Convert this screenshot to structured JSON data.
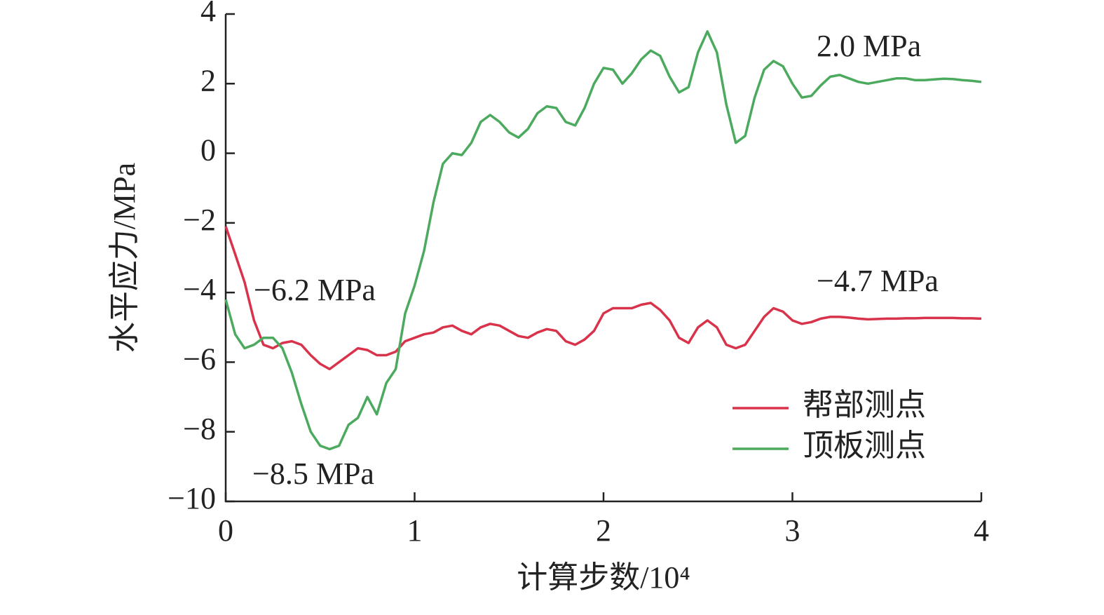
{
  "chart_data": {
    "type": "line",
    "xlabel": "计算步数/10⁴",
    "ylabel": "水平应力/MPa",
    "x": [
      0,
      0.05,
      0.1,
      0.15,
      0.2,
      0.25,
      0.3,
      0.35,
      0.4,
      0.45,
      0.5,
      0.55,
      0.6,
      0.65,
      0.7,
      0.75,
      0.8,
      0.85,
      0.9,
      0.95,
      1.0,
      1.05,
      1.1,
      1.15,
      1.2,
      1.25,
      1.3,
      1.35,
      1.4,
      1.45,
      1.5,
      1.55,
      1.6,
      1.65,
      1.7,
      1.75,
      1.8,
      1.85,
      1.9,
      1.95,
      2.0,
      2.05,
      2.1,
      2.15,
      2.2,
      2.25,
      2.3,
      2.35,
      2.4,
      2.45,
      2.5,
      2.55,
      2.6,
      2.65,
      2.7,
      2.75,
      2.8,
      2.85,
      2.9,
      2.95,
      3.0,
      3.05,
      3.1,
      3.15,
      3.2,
      3.25,
      3.3,
      3.35,
      3.4,
      3.45,
      3.5,
      3.55,
      3.6,
      3.65,
      3.7,
      3.75,
      3.8,
      3.85,
      3.9,
      3.95,
      4.0
    ],
    "series": [
      {
        "name": "帮部测点",
        "color": "#d8334a",
        "values": [
          -2.1,
          -2.9,
          -3.7,
          -4.8,
          -5.5,
          -5.6,
          -5.45,
          -5.4,
          -5.5,
          -5.8,
          -6.05,
          -6.2,
          -6.0,
          -5.8,
          -5.6,
          -5.65,
          -5.8,
          -5.8,
          -5.7,
          -5.4,
          -5.3,
          -5.2,
          -5.15,
          -5.0,
          -4.95,
          -5.1,
          -5.2,
          -5.0,
          -4.9,
          -4.95,
          -5.1,
          -5.25,
          -5.3,
          -5.15,
          -5.05,
          -5.1,
          -5.4,
          -5.5,
          -5.35,
          -5.1,
          -4.6,
          -4.45,
          -4.45,
          -4.45,
          -4.35,
          -4.3,
          -4.5,
          -4.8,
          -5.3,
          -5.45,
          -5.0,
          -4.8,
          -5.0,
          -5.5,
          -5.6,
          -5.5,
          -5.1,
          -4.7,
          -4.45,
          -4.55,
          -4.8,
          -4.9,
          -4.85,
          -4.75,
          -4.7,
          -4.7,
          -4.72,
          -4.75,
          -4.77,
          -4.76,
          -4.75,
          -4.75,
          -4.74,
          -4.74,
          -4.73,
          -4.73,
          -4.73,
          -4.73,
          -4.74,
          -4.74,
          -4.75
        ]
      },
      {
        "name": "顶板测点",
        "color": "#4caa5f",
        "values": [
          -4.2,
          -5.2,
          -5.6,
          -5.5,
          -5.3,
          -5.3,
          -5.6,
          -6.3,
          -7.2,
          -8.0,
          -8.4,
          -8.5,
          -8.4,
          -7.8,
          -7.6,
          -7.0,
          -7.5,
          -6.6,
          -6.2,
          -4.6,
          -3.8,
          -2.8,
          -1.4,
          -0.3,
          0,
          -0.05,
          0.3,
          0.9,
          1.1,
          0.9,
          0.6,
          0.45,
          0.7,
          1.15,
          1.35,
          1.3,
          0.9,
          0.8,
          1.3,
          2.0,
          2.45,
          2.4,
          2.0,
          2.3,
          2.7,
          2.95,
          2.8,
          2.2,
          1.75,
          1.9,
          2.9,
          3.5,
          2.9,
          1.4,
          0.3,
          0.5,
          1.6,
          2.4,
          2.65,
          2.5,
          2.0,
          1.6,
          1.65,
          1.95,
          2.2,
          2.25,
          2.15,
          2.05,
          2.0,
          2.05,
          2.1,
          2.15,
          2.15,
          2.1,
          2.1,
          2.12,
          2.14,
          2.13,
          2.1,
          2.08,
          2.05
        ]
      }
    ],
    "xlim": [
      0,
      4
    ],
    "xticks": [
      0,
      1,
      2,
      3,
      4
    ],
    "ylim": [
      -10,
      4
    ],
    "yticks": [
      {
        "value": -10,
        "label": "−10"
      },
      {
        "value": -8,
        "label": "−8"
      },
      {
        "value": -6,
        "label": "−6"
      },
      {
        "value": -4,
        "label": "−4"
      },
      {
        "value": -2,
        "label": "−2"
      },
      0,
      2,
      4
    ],
    "annotations": [
      "2.0 MPa",
      "−4.7 MPa",
      "−6.2 MPa",
      "−8.5 MPa"
    ],
    "legend": "lower right"
  }
}
